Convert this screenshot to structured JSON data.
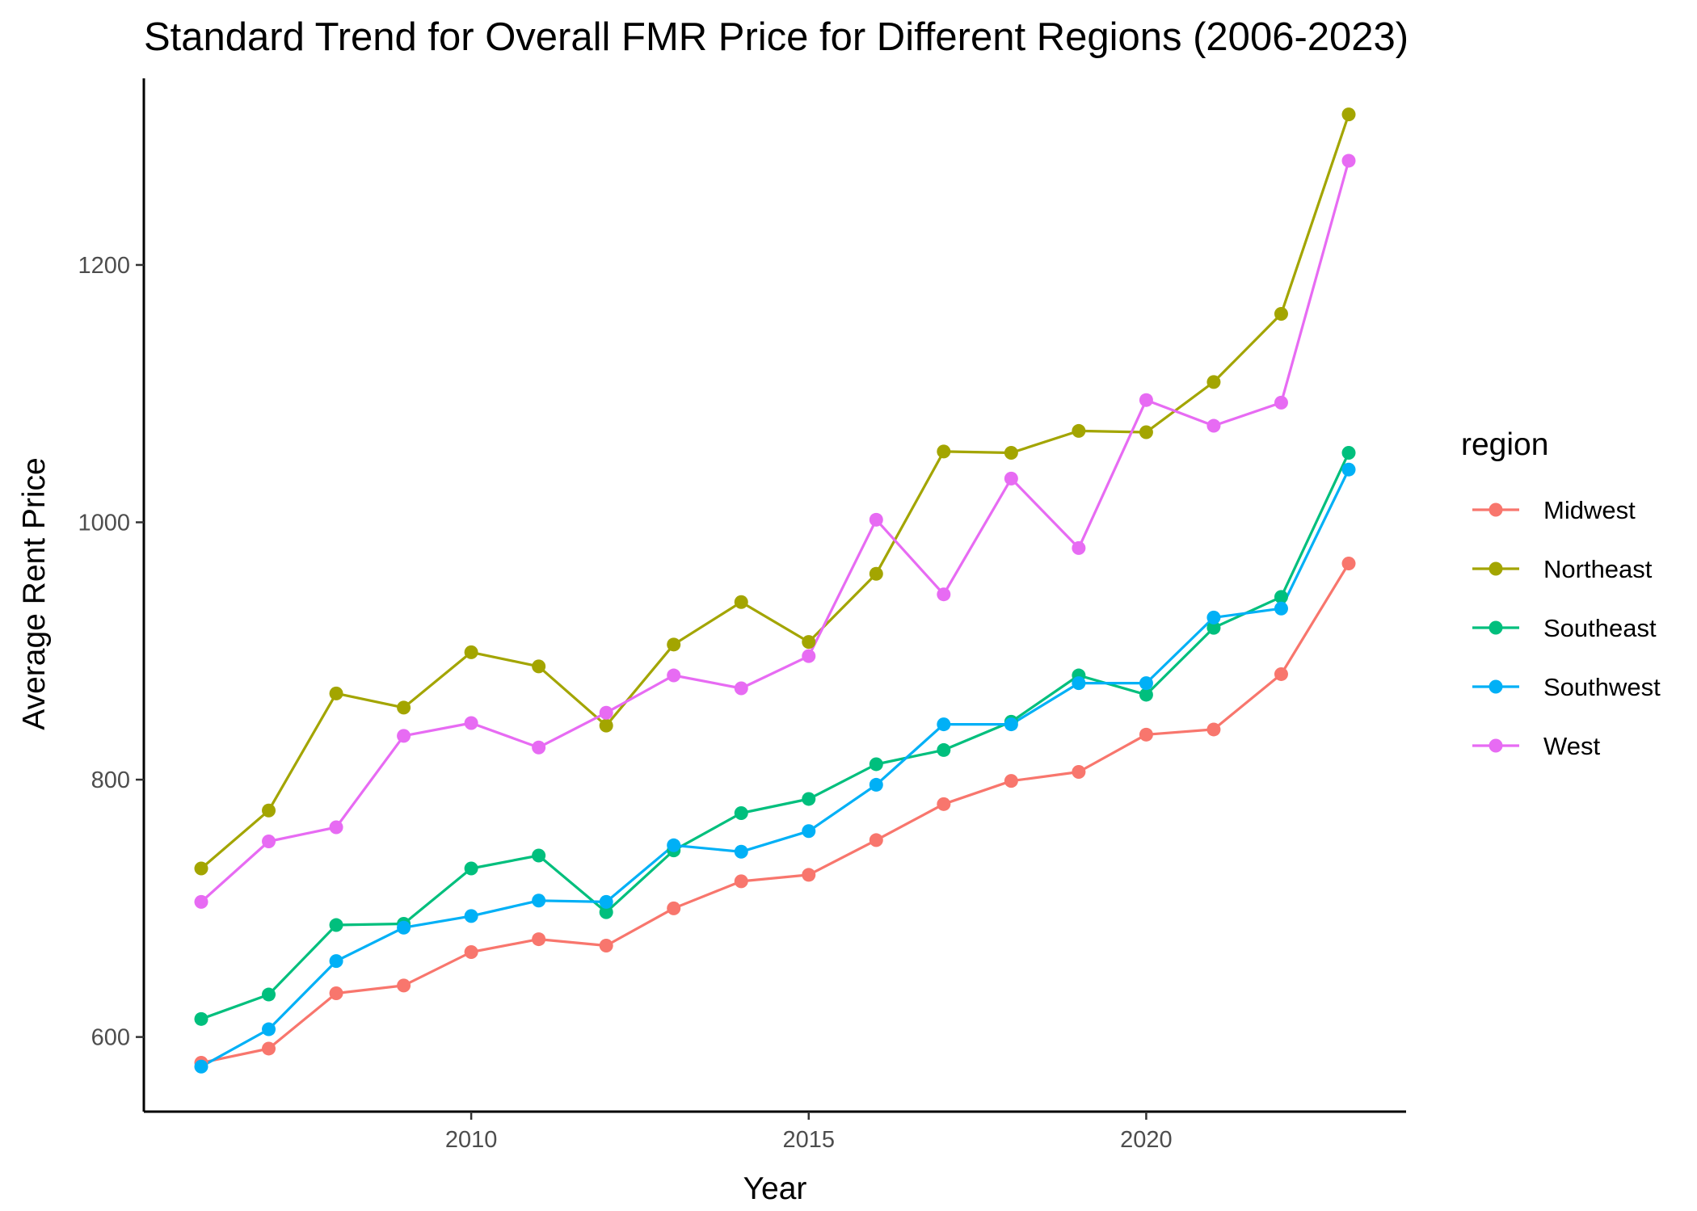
{
  "chart_data": {
    "type": "line",
    "title": "Standard Trend for Overall FMR Price for Different Regions (2006-2023)",
    "xlabel": "Year",
    "ylabel": "Average Rent Price",
    "x": [
      2006,
      2007,
      2008,
      2009,
      2010,
      2011,
      2012,
      2013,
      2014,
      2015,
      2016,
      2017,
      2018,
      2019,
      2020,
      2021,
      2022,
      2023
    ],
    "xlim": [
      2005.15,
      2023.85
    ],
    "ylim": [
      542,
      1345
    ],
    "x_ticks": [
      2010,
      2015,
      2020
    ],
    "y_ticks": [
      600,
      800,
      1000,
      1200
    ],
    "grid": false,
    "legend_title": "region",
    "legend_position": "right",
    "series": [
      {
        "name": "Midwest",
        "color": "#F8766D",
        "values": [
          580,
          591,
          634,
          640,
          666,
          676,
          671,
          700,
          721,
          726,
          753,
          781,
          799,
          806,
          835,
          839,
          882,
          968
        ]
      },
      {
        "name": "Northeast",
        "color": "#A3A500",
        "values": [
          731,
          776,
          867,
          856,
          899,
          888,
          842,
          905,
          938,
          907,
          960,
          1055,
          1054,
          1071,
          1070,
          1109,
          1162,
          1317
        ]
      },
      {
        "name": "Southeast",
        "color": "#00BF7D",
        "values": [
          614,
          633,
          687,
          688,
          731,
          741,
          697,
          745,
          774,
          785,
          812,
          823,
          845,
          881,
          866,
          918,
          942,
          1054
        ]
      },
      {
        "name": "Southwest",
        "color": "#00B0F6",
        "values": [
          577,
          606,
          659,
          685,
          694,
          706,
          705,
          749,
          744,
          760,
          796,
          843,
          843,
          875,
          875,
          926,
          933,
          1041
        ]
      },
      {
        "name": "West",
        "color": "#E76BF3",
        "values": [
          705,
          752,
          763,
          834,
          844,
          825,
          852,
          881,
          871,
          896,
          1002,
          944,
          1034,
          980,
          1095,
          1075,
          1093,
          1281
        ]
      }
    ]
  }
}
